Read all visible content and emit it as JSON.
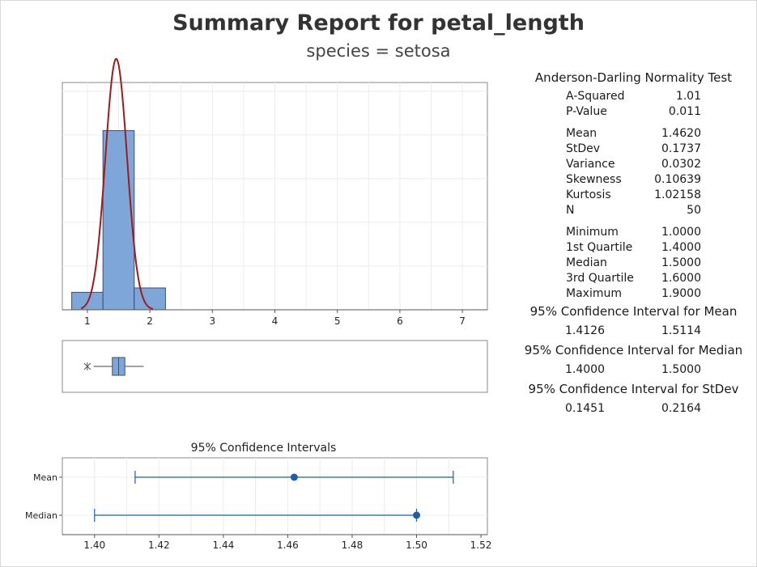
{
  "title": "Summary Report for petal_length",
  "subtitle": "species = setosa",
  "stats": {
    "normality_header": "Anderson-Darling Normality Test",
    "normality": [
      {
        "label": "A-Squared",
        "value": "1.01"
      },
      {
        "label": "P-Value",
        "value": "0.011"
      }
    ],
    "moments": [
      {
        "label": "Mean",
        "value": "1.4620"
      },
      {
        "label": "StDev",
        "value": "0.1737"
      },
      {
        "label": "Variance",
        "value": "0.0302"
      },
      {
        "label": "Skewness",
        "value": "0.10639"
      },
      {
        "label": "Kurtosis",
        "value": "1.02158"
      },
      {
        "label": "N",
        "value": "50"
      }
    ],
    "quantiles": [
      {
        "label": "Minimum",
        "value": "1.0000"
      },
      {
        "label": "1st Quartile",
        "value": "1.4000"
      },
      {
        "label": "Median",
        "value": "1.5000"
      },
      {
        "label": "3rd Quartile",
        "value": "1.6000"
      },
      {
        "label": "Maximum",
        "value": "1.9000"
      }
    ],
    "ci_mean": {
      "header": "95% Confidence Interval for Mean",
      "lower": "1.4126",
      "upper": "1.5114"
    },
    "ci_median": {
      "header": "95% Confidence Interval for Median",
      "lower": "1.4000",
      "upper": "1.5000"
    },
    "ci_stdev": {
      "header": "95% Confidence Interval for StDev",
      "lower": "0.1451",
      "upper": "0.2164"
    }
  },
  "chart_data": [
    {
      "type": "bar",
      "subtype": "histogram",
      "bins": [
        {
          "start": 0.75,
          "end": 1.25,
          "count": 4
        },
        {
          "start": 1.25,
          "end": 1.75,
          "count": 41
        },
        {
          "start": 1.75,
          "end": 2.25,
          "count": 5
        }
      ],
      "xlim": [
        0.6,
        7.4
      ],
      "ylim": [
        0,
        52
      ],
      "xticks": [
        1,
        2,
        3,
        4,
        5,
        6,
        7
      ],
      "yticks_shown": false,
      "grid": true,
      "bar_color": "#7fa6d8",
      "bar_edge": "#3d4f6e",
      "fit_curve": {
        "type": "normal",
        "mean": 1.462,
        "sd": 0.1737,
        "n": 50,
        "color": "#9e1b1b"
      }
    },
    {
      "type": "boxplot",
      "min": 1.1,
      "q1": 1.4,
      "median": 1.5,
      "q3": 1.6,
      "max": 1.9,
      "outliers": [
        1.0
      ],
      "xlim": [
        0.6,
        7.4
      ],
      "box_color": "#7fa6d8"
    },
    {
      "type": "interval",
      "title": "95% Confidence Intervals",
      "categories": [
        "Mean",
        "Median"
      ],
      "points": [
        1.462,
        1.5
      ],
      "intervals": [
        [
          1.4126,
          1.5114
        ],
        [
          1.4,
          1.5
        ]
      ],
      "xlim": [
        1.39,
        1.522
      ],
      "xticks": [
        "1.40",
        "1.42",
        "1.44",
        "1.46",
        "1.48",
        "1.50",
        "1.52"
      ],
      "grid": true,
      "color": "#1f5ea8"
    }
  ]
}
